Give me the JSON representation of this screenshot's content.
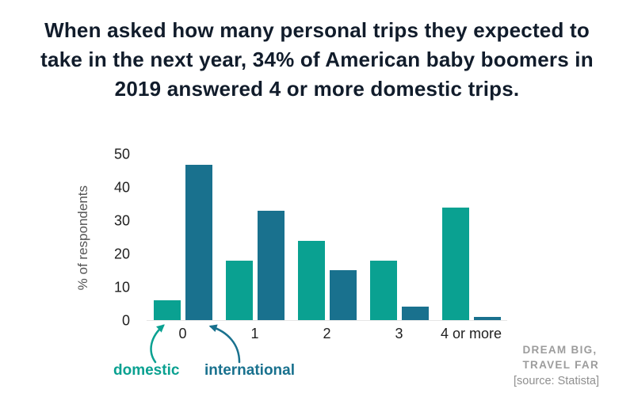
{
  "title": "When asked how many personal trips they expected to take in the next year, 34% of American baby boomers in 2019 answered 4 or more domestic trips.",
  "legend": {
    "domestic": "domestic",
    "international": "international"
  },
  "branding": {
    "line1": "DREAM BIG,",
    "line2": "TRAVEL FAR",
    "source": "[source: Statista]"
  },
  "colors": {
    "domestic": "#0aa191",
    "international": "#19718e",
    "title": "#111c2b",
    "axis_text": "#1f1f1f",
    "muted_gray": "#9c9c9c"
  },
  "chart_data": {
    "type": "bar",
    "categories": [
      "0",
      "1",
      "2",
      "3",
      "4 or more"
    ],
    "series": [
      {
        "name": "domestic",
        "values": [
          6,
          18,
          24,
          18,
          34
        ]
      },
      {
        "name": "international",
        "values": [
          47,
          33,
          15,
          4,
          1
        ]
      }
    ],
    "title": "",
    "xlabel": "",
    "ylabel": "% of respondents",
    "ylim": [
      0,
      50
    ],
    "yticks": [
      0,
      10,
      20,
      30,
      40,
      50
    ],
    "grid": false,
    "legend_position": "below-left-with-arrows"
  }
}
